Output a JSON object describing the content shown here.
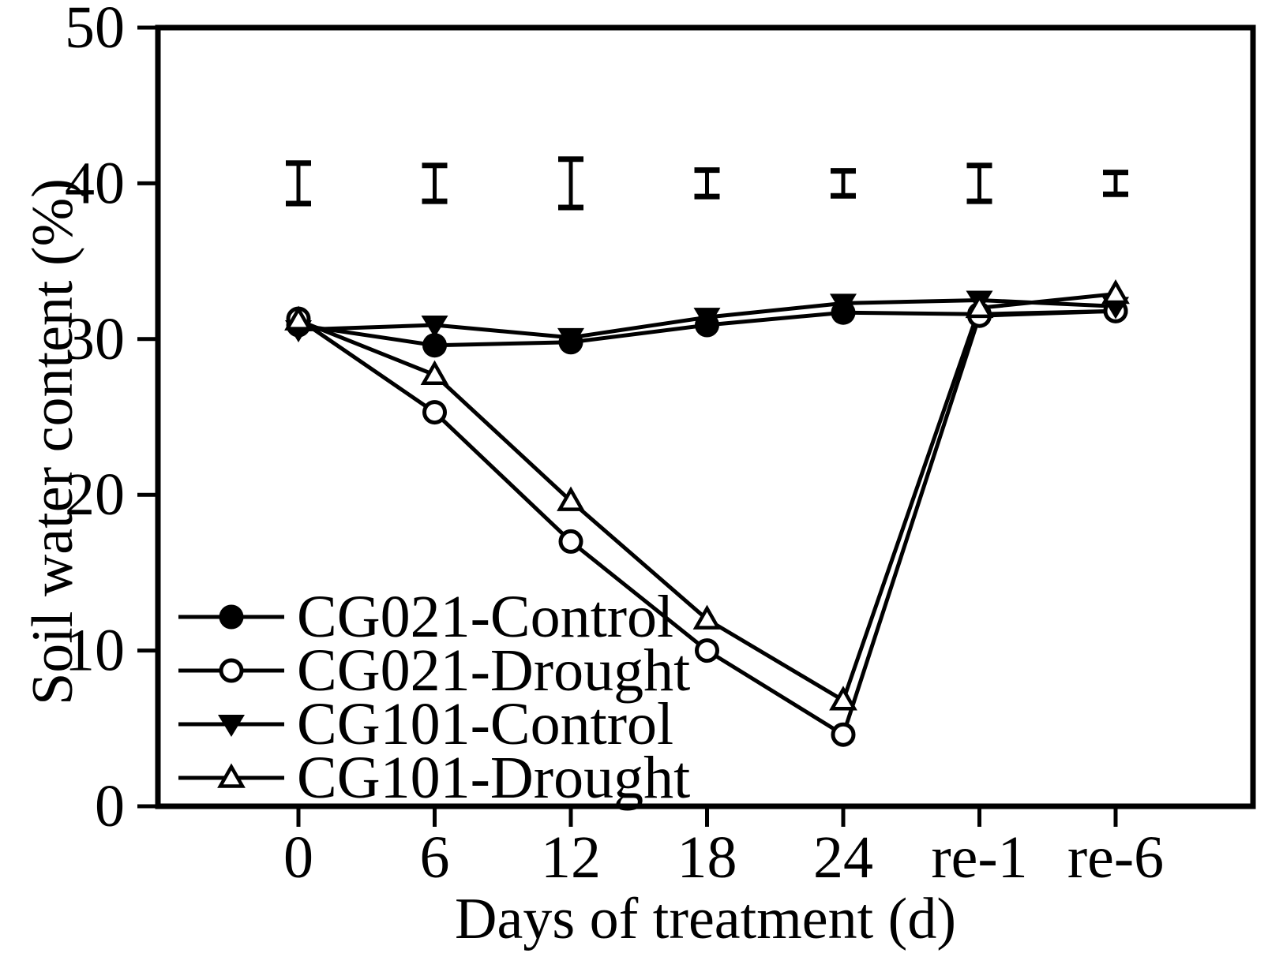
{
  "page": {
    "background": "#ffffff"
  },
  "chart_data": {
    "type": "line",
    "title": "",
    "xlabel": "Days of treatment (d)",
    "ylabel": "Soil water content (%)",
    "categories": [
      "0",
      "6",
      "12",
      "18",
      "24",
      "re-1",
      "re-6"
    ],
    "ylim": [
      0,
      50
    ],
    "yticks": [
      0,
      10,
      20,
      30,
      40,
      50
    ],
    "grid": false,
    "frame": "box",
    "legend_position": "inside-lower-left",
    "series": [
      {
        "name": "CG021-Control",
        "marker": "filled-circle",
        "values": [
          30.9,
          29.6,
          29.8,
          30.9,
          31.7,
          31.6,
          31.8
        ]
      },
      {
        "name": "CG021-Drought",
        "marker": "open-circle",
        "values": [
          31.3,
          25.3,
          17.0,
          10.0,
          4.6,
          31.5,
          31.8
        ]
      },
      {
        "name": "CG101-Control",
        "marker": "filled-triangle-down",
        "values": [
          30.6,
          30.9,
          30.1,
          31.4,
          32.3,
          32.5,
          32.1
        ]
      },
      {
        "name": "CG101-Drought",
        "marker": "open-triangle-up",
        "values": [
          31.2,
          27.7,
          19.6,
          12.0,
          6.8,
          32.0,
          32.9
        ]
      }
    ],
    "error_bars": {
      "center": 40,
      "half_heights": [
        1.3,
        1.15,
        1.55,
        0.85,
        0.8,
        1.15,
        0.7
      ]
    },
    "colors": {
      "foreground": "#000000",
      "background": "#ffffff"
    }
  }
}
